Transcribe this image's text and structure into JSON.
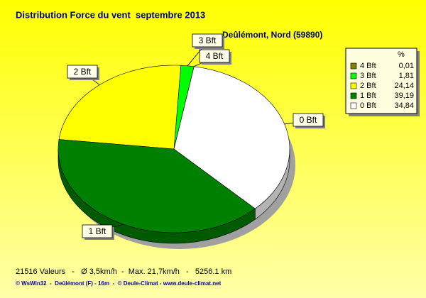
{
  "chart_data": {
    "type": "pie",
    "title": "Distribution Force du vent  septembre 2013",
    "subtitle": "Deûlémont, Nord (59890)",
    "categories": [
      "4 Bft",
      "3 Bft",
      "2 Bft",
      "1 Bft",
      "0 Bft"
    ],
    "values": [
      0.01,
      1.81,
      24.14,
      39.19,
      34.84
    ],
    "value_labels": [
      "0,01",
      "1,81",
      "24,14",
      "39,19",
      "34,84"
    ],
    "colors": [
      "#808000",
      "#00ff00",
      "#ffff00",
      "#008000",
      "#ffffff"
    ],
    "legend_title": "%",
    "legend": "top-right",
    "footer": "21516 Valeurs   -   Ø 3,5km/h  -  Max. 21,7km/h   -   5256.1 km",
    "credits": "© WsWin32  -  Deûlémont (F) - 16m  -  © Deule-Climat - www.deule-climat.net"
  }
}
